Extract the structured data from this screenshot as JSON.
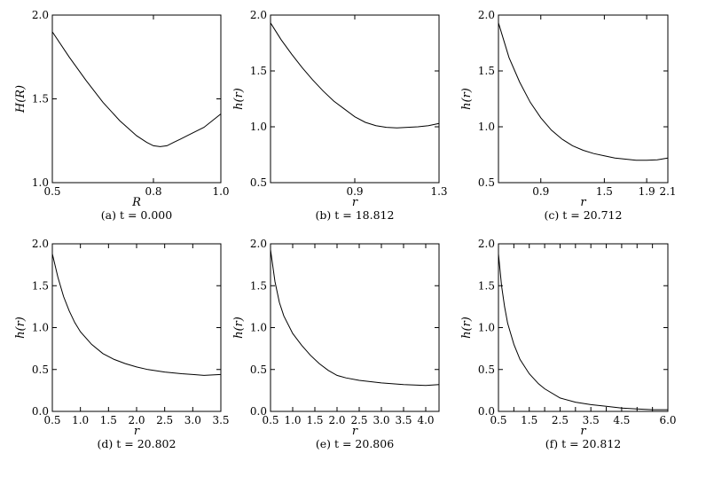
{
  "chart_data": [
    {
      "type": "line",
      "caption": "(a) t = 0.000",
      "xlabel": "R",
      "ylabel": "H(R)",
      "xlim": [
        0.5,
        1.0
      ],
      "ylim": [
        1.0,
        2.0
      ],
      "xticks": [
        0.5,
        0.8,
        1.0
      ],
      "xtick_labels": [
        "0.5",
        "0.8",
        "1.0"
      ],
      "yticks": [
        1.0,
        1.5,
        2.0
      ],
      "ytick_labels": [
        "1.0",
        "1.5",
        "2.0"
      ],
      "x": [
        0.5,
        0.55,
        0.6,
        0.65,
        0.7,
        0.75,
        0.78,
        0.8,
        0.82,
        0.84,
        0.86,
        0.88,
        0.9,
        0.95,
        1.0
      ],
      "y": [
        1.9,
        1.75,
        1.61,
        1.48,
        1.37,
        1.28,
        1.24,
        1.22,
        1.215,
        1.22,
        1.24,
        1.26,
        1.28,
        1.33,
        1.41
      ]
    },
    {
      "type": "line",
      "caption": "(b) t = 18.812",
      "xlabel": "r",
      "ylabel": "h(r)",
      "xlim": [
        0.5,
        1.3
      ],
      "ylim": [
        0.5,
        2.0
      ],
      "xticks": [
        0.9,
        1.3
      ],
      "xtick_labels": [
        "0.9",
        "1.3"
      ],
      "yticks": [
        0.5,
        1.0,
        1.5,
        2.0
      ],
      "ytick_labels": [
        "0.5",
        "1.0",
        "1.5",
        "2.0"
      ],
      "x": [
        0.5,
        0.55,
        0.6,
        0.65,
        0.7,
        0.75,
        0.8,
        0.85,
        0.9,
        0.95,
        1.0,
        1.05,
        1.1,
        1.15,
        1.2,
        1.25,
        1.3
      ],
      "y": [
        1.93,
        1.78,
        1.65,
        1.53,
        1.42,
        1.32,
        1.23,
        1.16,
        1.09,
        1.04,
        1.01,
        0.995,
        0.99,
        0.995,
        1.0,
        1.01,
        1.03
      ]
    },
    {
      "type": "line",
      "caption": "(c) t = 20.712",
      "xlabel": "r",
      "ylabel": "h(r)",
      "xlim": [
        0.5,
        2.1
      ],
      "ylim": [
        0.5,
        2.0
      ],
      "xticks": [
        0.9,
        1.5,
        1.9,
        2.1
      ],
      "xtick_labels": [
        "0.9",
        "1.5",
        "1.9",
        "2.1"
      ],
      "yticks": [
        0.5,
        1.0,
        1.5,
        2.0
      ],
      "ytick_labels": [
        "0.5",
        "1.0",
        "1.5",
        "2.0"
      ],
      "x": [
        0.5,
        0.6,
        0.7,
        0.8,
        0.9,
        1.0,
        1.1,
        1.2,
        1.3,
        1.4,
        1.5,
        1.6,
        1.7,
        1.8,
        1.9,
        2.0,
        2.1
      ],
      "y": [
        1.93,
        1.62,
        1.4,
        1.22,
        1.08,
        0.97,
        0.89,
        0.83,
        0.79,
        0.76,
        0.74,
        0.72,
        0.71,
        0.7,
        0.7,
        0.705,
        0.72
      ]
    },
    {
      "type": "line",
      "caption": "(d) t = 20.802",
      "xlabel": "r",
      "ylabel": "h(r)",
      "xlim": [
        0.5,
        3.5
      ],
      "ylim": [
        0.0,
        2.0
      ],
      "xticks": [
        0.5,
        1.0,
        1.5,
        2.0,
        2.5,
        3.0,
        3.5
      ],
      "xtick_labels": [
        "0.5",
        "1.0",
        "1.5",
        "2.0",
        "2.5",
        "3.0",
        "3.5"
      ],
      "yticks": [
        0.0,
        0.5,
        1.0,
        1.5,
        2.0
      ],
      "ytick_labels": [
        "0.0",
        "0.5",
        "1.0",
        "1.5",
        "2.0"
      ],
      "x": [
        0.5,
        0.6,
        0.7,
        0.8,
        0.9,
        1.0,
        1.2,
        1.4,
        1.6,
        1.8,
        2.0,
        2.2,
        2.5,
        2.8,
        3.0,
        3.2,
        3.5
      ],
      "y": [
        1.88,
        1.6,
        1.37,
        1.2,
        1.06,
        0.95,
        0.8,
        0.69,
        0.62,
        0.57,
        0.53,
        0.5,
        0.47,
        0.45,
        0.44,
        0.43,
        0.44
      ]
    },
    {
      "type": "line",
      "caption": "(e) t = 20.806",
      "xlabel": "r",
      "ylabel": "h(r)",
      "xlim": [
        0.5,
        4.3
      ],
      "ylim": [
        0.0,
        2.0
      ],
      "xticks": [
        0.5,
        1.0,
        1.5,
        2.0,
        2.5,
        3.0,
        3.5,
        4.0
      ],
      "xtick_labels": [
        "0.5",
        "1.0",
        "1.5",
        "2.0",
        "2.5",
        "3.0",
        "3.5",
        "4.0"
      ],
      "yticks": [
        0.0,
        0.5,
        1.0,
        1.5,
        2.0
      ],
      "ytick_labels": [
        "0.0",
        "0.5",
        "1.0",
        "1.5",
        "2.0"
      ],
      "x": [
        0.5,
        0.6,
        0.7,
        0.8,
        1.0,
        1.2,
        1.4,
        1.6,
        1.8,
        2.0,
        2.2,
        2.5,
        3.0,
        3.5,
        4.0,
        4.3
      ],
      "y": [
        1.93,
        1.55,
        1.3,
        1.14,
        0.93,
        0.79,
        0.67,
        0.57,
        0.49,
        0.43,
        0.4,
        0.37,
        0.34,
        0.32,
        0.31,
        0.32
      ]
    },
    {
      "type": "line",
      "caption": "(f) t = 20.812",
      "xlabel": "r",
      "ylabel": "h(r)",
      "xlim": [
        0.5,
        6.0
      ],
      "ylim": [
        0.0,
        2.0
      ],
      "xticks": [
        0.5,
        1.0,
        1.5,
        2.0,
        2.5,
        3.0,
        3.5,
        4.0,
        4.5,
        5.0,
        5.5,
        6.0
      ],
      "xtick_labels": [
        "0.5",
        "",
        "1.5",
        "",
        "2.5",
        "",
        "3.5",
        "",
        "4.5",
        "",
        "",
        "6.0"
      ],
      "yticks": [
        0.0,
        0.5,
        1.0,
        1.5,
        2.0
      ],
      "ytick_labels": [
        "0.0",
        "0.5",
        "1.0",
        "1.5",
        "2.0"
      ],
      "x": [
        0.5,
        0.6,
        0.7,
        0.8,
        1.0,
        1.2,
        1.5,
        1.8,
        2.0,
        2.5,
        3.0,
        3.5,
        4.0,
        4.5,
        5.0,
        5.5,
        6.0
      ],
      "y": [
        1.88,
        1.5,
        1.25,
        1.05,
        0.8,
        0.62,
        0.45,
        0.33,
        0.27,
        0.16,
        0.11,
        0.08,
        0.06,
        0.04,
        0.03,
        0.02,
        0.02
      ]
    }
  ]
}
